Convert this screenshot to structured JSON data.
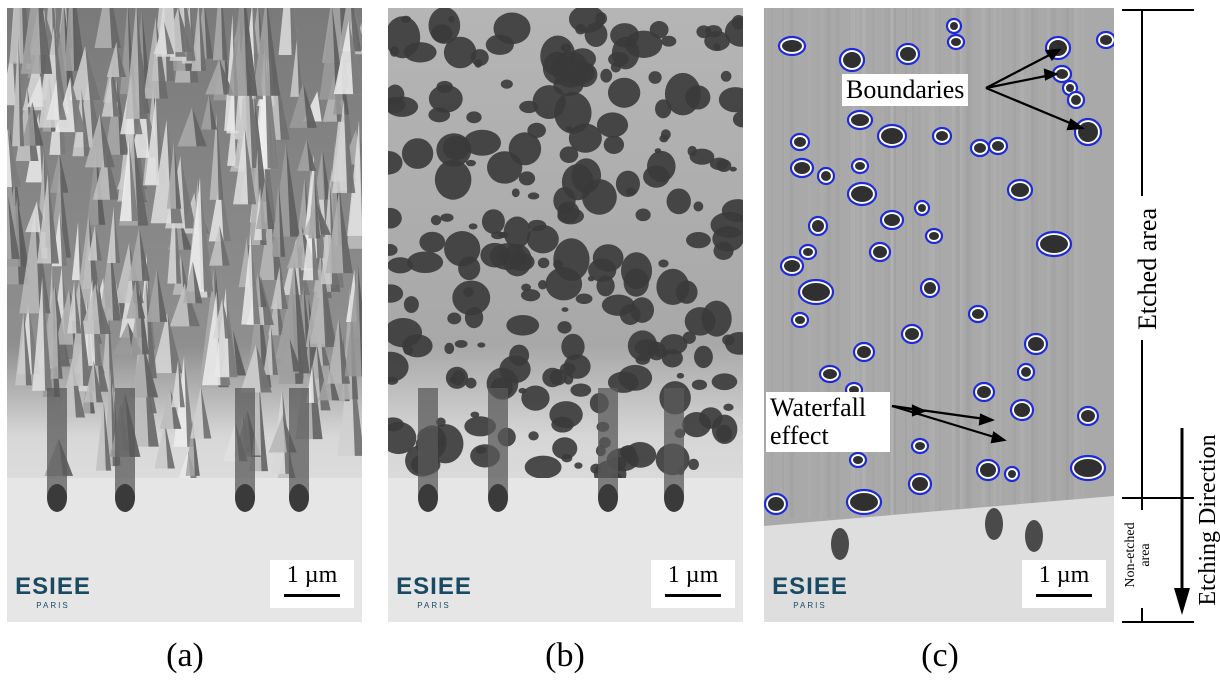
{
  "panels": [
    {
      "id": "a",
      "caption": "(a)",
      "scalebar": "1 µm",
      "logo": {
        "main": "ESIEE",
        "sub": "PARIS"
      }
    },
    {
      "id": "b",
      "caption": "(b)",
      "scalebar": "1 µm",
      "logo": {
        "main": "ESIEE",
        "sub": "PARIS"
      }
    },
    {
      "id": "c",
      "caption": "(c)",
      "scalebar": "1 µm",
      "logo": {
        "main": "ESIEE",
        "sub": "PARIS"
      }
    }
  ],
  "annotations": {
    "boundaries": "Boundaries",
    "waterfall_line1": "Waterfall",
    "waterfall_line2": "effect"
  },
  "side_labels": {
    "etched_area": "Etched area",
    "non_etched_line1": "Non-etched",
    "non_etched_line2": "area",
    "etching_direction": "Etching Direction"
  },
  "colors": {
    "boundary_outline": "#1f2bd6",
    "logo_text": "#1a4a62"
  }
}
